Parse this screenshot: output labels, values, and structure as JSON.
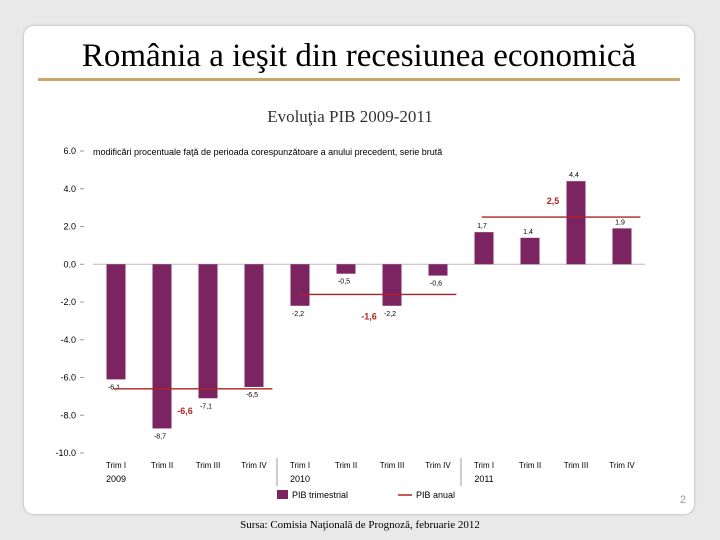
{
  "slide": {
    "title": "România a ieşit din recesiunea economică",
    "page_number": "2",
    "source": "Sursa: Comisia Naţională de Prognoză, februarie 2012"
  },
  "chart_data": {
    "type": "bar",
    "title": "Evoluţia PIB 2009-2011",
    "subtitle": "modificări procentuale faţă de perioada corespunzătoare a anului precedent, serie brută",
    "categories": [
      "Trim I",
      "Trim II",
      "Trim III",
      "Trim IV",
      "Trim I",
      "Trim II",
      "Trim III",
      "Trim IV",
      "Trim I",
      "Trim II",
      "Trim III",
      "Trim IV"
    ],
    "years": [
      {
        "label": "2009",
        "start_index": 0
      },
      {
        "label": "2010",
        "start_index": 4
      },
      {
        "label": "2011",
        "start_index": 8
      }
    ],
    "series": [
      {
        "name": "PIB trimestrial",
        "values": [
          -6.1,
          -8.7,
          -7.1,
          -6.5,
          -2.2,
          -0.5,
          -2.2,
          -0.6,
          1.7,
          1.4,
          4.4,
          1.9
        ],
        "labels": [
          "-6,1",
          "-8,7",
          "-7,1",
          "-6,5",
          "-2,2",
          "-0,5",
          "-2,2",
          "-0,6",
          "1,7",
          "1,4",
          "4,4",
          "1,9"
        ],
        "color": "#7b2461"
      },
      {
        "name": "PIB anual",
        "type": "line",
        "color": "#b22222",
        "annual": [
          {
            "year": "2009",
            "value": -6.6,
            "label": "-6,6"
          },
          {
            "year": "2010",
            "value": -1.6,
            "label": "-1,6"
          },
          {
            "year": "2011",
            "value": 2.5,
            "label": "2,5"
          }
        ]
      }
    ],
    "y_ticks": [
      "6.0",
      "4.0",
      "2.0",
      "0.0",
      "-2.0",
      "-4.0",
      "-6.0",
      "-8.0",
      "-10.0"
    ],
    "ylim": [
      -10,
      6
    ],
    "legend_position": "bottom",
    "grid": false
  }
}
